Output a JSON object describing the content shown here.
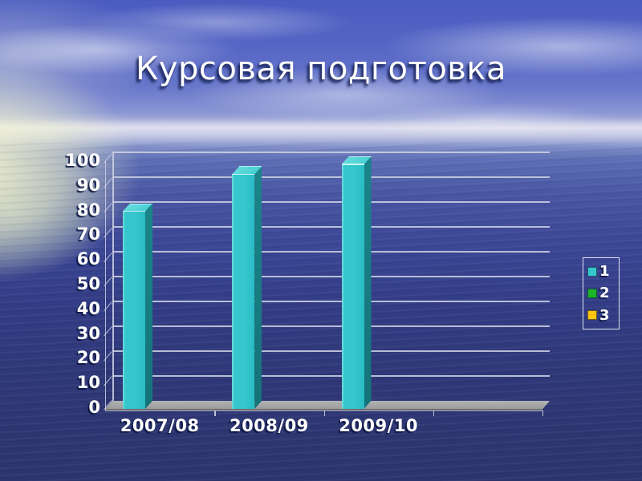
{
  "slide": {
    "title": "Курсовая подготовка"
  },
  "colors": {
    "series1": "#35c7cd",
    "series1_top": "#4fd4d6",
    "series1_side": "#167a7e",
    "series2": "#1db42c",
    "series3": "#fec40e",
    "gridline": "#cbcfe2",
    "floor": "#a8a8a8",
    "label_text": "#ffffff",
    "title_text": "#ffffff"
  },
  "chart_data": {
    "type": "bar",
    "style": "3d-column",
    "title": "",
    "xlabel": "",
    "ylabel": "",
    "categories": [
      "2007/08",
      "2008/09",
      "2009/10"
    ],
    "series": [
      {
        "name": "1",
        "color": "#35c7cd",
        "values": [
          80,
          95,
          99
        ]
      },
      {
        "name": "2",
        "color": "#1db42c",
        "values": []
      },
      {
        "name": "3",
        "color": "#fec40e",
        "values": []
      }
    ],
    "ylim": [
      0,
      100
    ],
    "ytick_step": 10,
    "ytick_labels": [
      "0",
      "10",
      "20",
      "30",
      "40",
      "50",
      "60",
      "70",
      "80",
      "90",
      "100"
    ],
    "grid": true,
    "legend_position": "right",
    "legend_entries": [
      "1",
      "2",
      "3"
    ]
  }
}
